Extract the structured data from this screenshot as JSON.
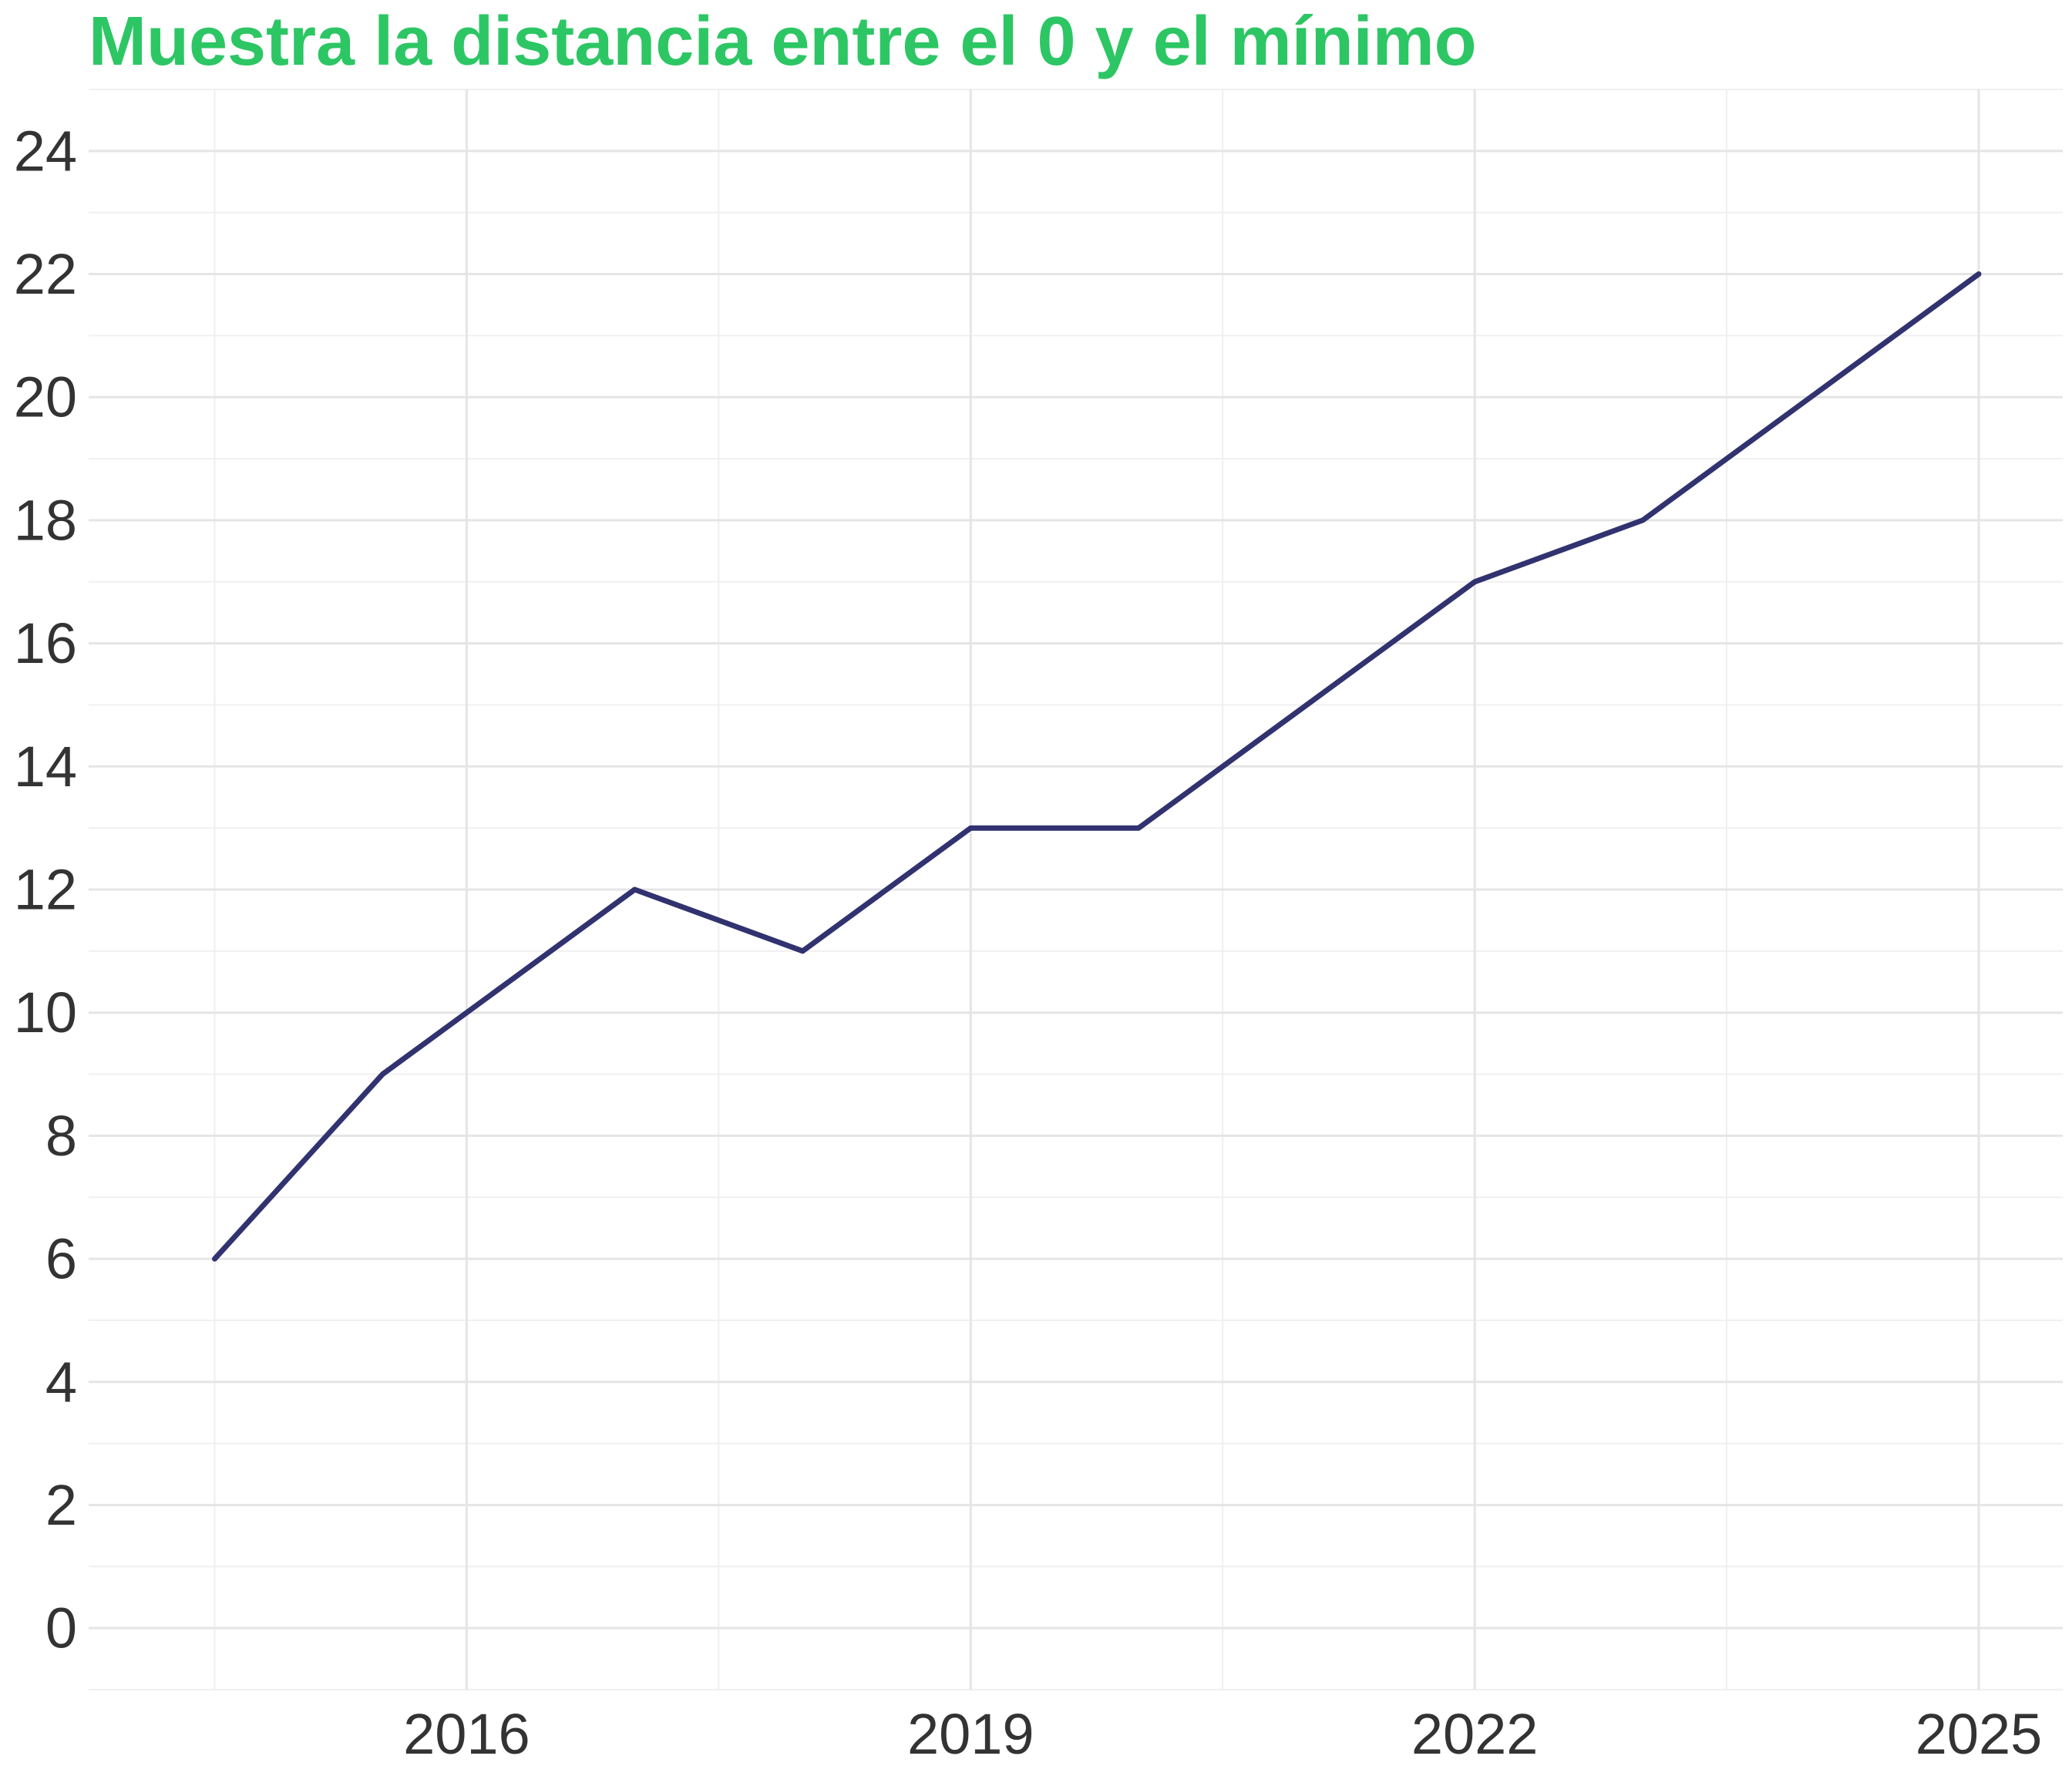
{
  "chart_data": {
    "type": "line",
    "title": "Muestra la distancia entre el 0 y el mínimo",
    "xlabel": "",
    "ylabel": "",
    "x": [
      2014.5,
      2015.5,
      2016,
      2017,
      2018,
      2019,
      2020,
      2021,
      2022,
      2023,
      2024,
      2025
    ],
    "series": [
      {
        "values": [
          6,
          9,
          10,
          12,
          11,
          13,
          13,
          15,
          17,
          18,
          20,
          22
        ],
        "color": "#31326F"
      }
    ],
    "xlim": [
      2013.75,
      2025.5
    ],
    "ylim": [
      -1,
      25
    ],
    "x_ticks": [
      2016,
      2019,
      2022,
      2025
    ],
    "x_minor_ticks": [
      2014.5,
      2017.5,
      2020.5,
      2023.5
    ],
    "y_ticks": [
      0,
      2,
      4,
      6,
      8,
      10,
      12,
      14,
      16,
      18,
      20,
      22,
      24
    ],
    "grid": true,
    "legend": "none",
    "colors": {
      "title": "#2DC664",
      "line": "#31326F",
      "grid_major": "#E5E5E5",
      "grid_minor": "#F0F0F0",
      "tick_text": "#333333"
    }
  }
}
